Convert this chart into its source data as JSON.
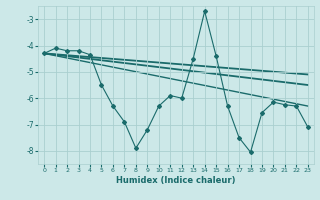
{
  "title": "",
  "xlabel": "Humidex (Indice chaleur)",
  "ylabel": "",
  "bg_color": "#cce8e8",
  "grid_color": "#aacfcf",
  "line_color": "#1a6b6b",
  "xlim": [
    -0.5,
    23.5
  ],
  "ylim": [
    -8.5,
    -2.5
  ],
  "yticks": [
    -8,
    -7,
    -6,
    -5,
    -4,
    -3
  ],
  "xticks": [
    0,
    1,
    2,
    3,
    4,
    5,
    6,
    7,
    8,
    9,
    10,
    11,
    12,
    13,
    14,
    15,
    16,
    17,
    18,
    19,
    20,
    21,
    22,
    23
  ],
  "series_main": {
    "x": [
      0,
      1,
      2,
      3,
      4,
      5,
      6,
      7,
      8,
      9,
      10,
      11,
      12,
      13,
      14,
      15,
      16,
      17,
      18,
      19,
      20,
      21,
      22,
      23
    ],
    "y": [
      -4.3,
      -4.1,
      -4.2,
      -4.2,
      -4.35,
      -5.5,
      -6.3,
      -6.9,
      -7.9,
      -7.2,
      -6.3,
      -5.9,
      -6.0,
      -4.5,
      -2.7,
      -4.4,
      -6.3,
      -7.5,
      -8.05,
      -6.55,
      -6.15,
      -6.25,
      -6.3,
      -7.1
    ],
    "marker": "D",
    "markersize": 2.0,
    "linewidth": 0.8
  },
  "trend_lines": [
    {
      "x0": 0,
      "x1": 23,
      "y0": -4.3,
      "y1": -5.1,
      "lw": 1.3
    },
    {
      "x0": 0,
      "x1": 23,
      "y0": -4.3,
      "y1": -5.5,
      "lw": 1.3
    },
    {
      "x0": 0,
      "x1": 23,
      "y0": -4.3,
      "y1": -6.3,
      "lw": 1.0
    }
  ]
}
